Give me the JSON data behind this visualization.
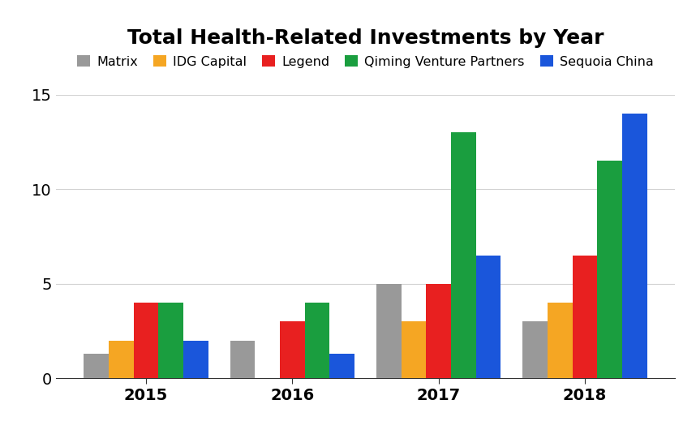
{
  "title": "Total Health-Related Investments by Year",
  "years": [
    "2015",
    "2016",
    "2017",
    "2018"
  ],
  "series": [
    {
      "name": "Matrix",
      "color": "#999999",
      "values": [
        1.3,
        2.0,
        5.0,
        3.0
      ]
    },
    {
      "name": "IDG Capital",
      "color": "#f5a623",
      "values": [
        2.0,
        0.0,
        3.0,
        4.0
      ]
    },
    {
      "name": "Legend",
      "color": "#e82020",
      "values": [
        4.0,
        3.0,
        5.0,
        6.5
      ]
    },
    {
      "name": "Qiming Venture Partners",
      "color": "#1a9e3f",
      "values": [
        4.0,
        4.0,
        13.0,
        11.5
      ]
    },
    {
      "name": "Sequoia China",
      "color": "#1a56db",
      "values": [
        2.0,
        1.3,
        6.5,
        14.0
      ]
    }
  ],
  "ylim": [
    0,
    15
  ],
  "yticks": [
    0,
    5,
    10,
    15
  ],
  "background_color": "#ffffff",
  "title_fontsize": 18,
  "legend_fontsize": 11.5,
  "tick_fontsize": 14,
  "bar_width": 0.17
}
